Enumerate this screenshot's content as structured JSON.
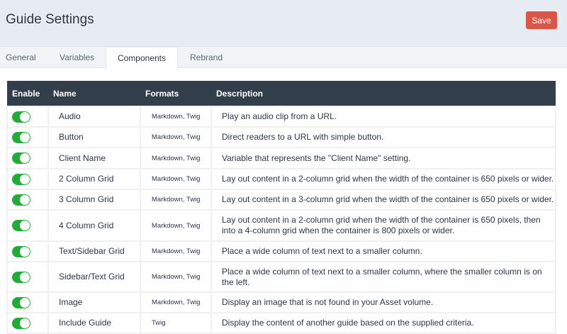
{
  "header": {
    "title": "Guide Settings",
    "save_label": "Save"
  },
  "tabs": [
    {
      "label": "General"
    },
    {
      "label": "Variables"
    },
    {
      "label": "Components",
      "active": true
    },
    {
      "label": "Rebrand"
    }
  ],
  "colors": {
    "toggle_on": "#22aa3a",
    "save": "#d9574a",
    "table_header": "#333e4b"
  },
  "table": {
    "headers": [
      "Enable",
      "Name",
      "Formats",
      "Description"
    ],
    "rows": [
      {
        "enabled": true,
        "name": "Audio",
        "formats": "Markdown, Twig",
        "description": "Play an audio clip from a URL."
      },
      {
        "enabled": true,
        "name": "Button",
        "formats": "Markdown, Twig",
        "description": "Direct readers to a URL with simple button."
      },
      {
        "enabled": true,
        "name": "Client Name",
        "formats": "Markdown, Twig",
        "description": "Variable that represents the \"Client Name\" setting."
      },
      {
        "enabled": true,
        "name": "2 Column Grid",
        "formats": "Markdown, Twig",
        "description": "Lay out content in a 2-column grid when the width of the container is 650 pixels or wider."
      },
      {
        "enabled": true,
        "name": "3 Column Grid",
        "formats": "Markdown, Twig",
        "description": "Lay out content in a 3-column grid when the width of the container is 650 pixels or wider."
      },
      {
        "enabled": true,
        "name": "4 Column Grid",
        "formats": "Markdown, Twig",
        "description": "Lay out content in a 2-column grid when the width of the container is 650 pixels, then into a 4-column grid when the container is 800 pixels or wider."
      },
      {
        "enabled": true,
        "name": "Text/Sidebar Grid",
        "formats": "Markdown, Twig",
        "description": "Place a wide column of text next to a smaller column."
      },
      {
        "enabled": true,
        "name": "Sidebar/Text Grid",
        "formats": "Markdown, Twig",
        "description": "Place a wide column of text next to a smaller column, where the smaller column is on the left."
      },
      {
        "enabled": true,
        "name": "Image",
        "formats": "Markdown, Twig",
        "description": "Display an image that is not found in your Asset volume."
      },
      {
        "enabled": true,
        "name": "Include Guide",
        "formats": "Twig",
        "description": "Display the content of another guide based on the supplied criteria."
      }
    ]
  }
}
